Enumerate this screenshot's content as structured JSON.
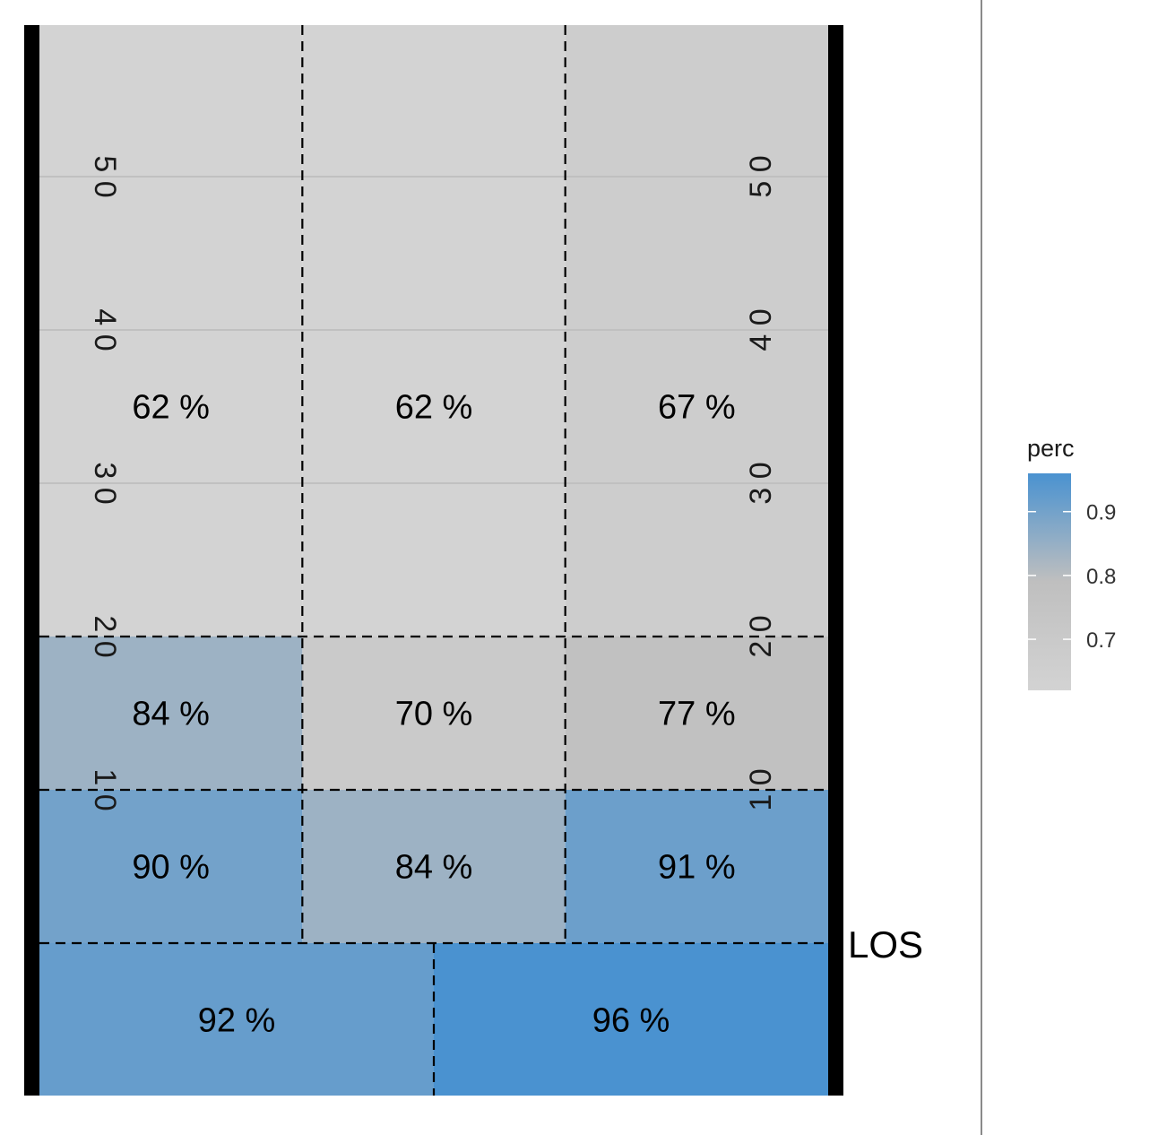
{
  "chart_data": {
    "type": "heatmap",
    "description_type": "football field completion-percentage heatmap",
    "y_range": [
      -10,
      50
    ],
    "yard_markers": [
      "1 0",
      "2 0",
      "3 0",
      "4 0",
      "5 0"
    ],
    "line_of_scrimmage_label": "LOS",
    "zones": [
      {
        "id": "deep-left",
        "y_range": [
          20,
          60
        ],
        "x_range": [
          0,
          1
        ],
        "value": 0.62,
        "label": "62 %"
      },
      {
        "id": "deep-middle",
        "y_range": [
          20,
          60
        ],
        "x_range": [
          1,
          2
        ],
        "value": 0.62,
        "label": "62 %"
      },
      {
        "id": "deep-right",
        "y_range": [
          20,
          60
        ],
        "x_range": [
          2,
          3
        ],
        "value": 0.67,
        "label": "67 %"
      },
      {
        "id": "intermediate-left",
        "y_range": [
          10,
          20
        ],
        "x_range": [
          0,
          1
        ],
        "value": 0.84,
        "label": "84 %"
      },
      {
        "id": "intermediate-middle",
        "y_range": [
          10,
          20
        ],
        "x_range": [
          1,
          2
        ],
        "value": 0.7,
        "label": "70 %"
      },
      {
        "id": "intermediate-right",
        "y_range": [
          10,
          20
        ],
        "x_range": [
          2,
          3
        ],
        "value": 0.77,
        "label": "77 %"
      },
      {
        "id": "short-left",
        "y_range": [
          0,
          10
        ],
        "x_range": [
          0,
          1
        ],
        "value": 0.9,
        "label": "90 %"
      },
      {
        "id": "short-middle",
        "y_range": [
          0,
          10
        ],
        "x_range": [
          1,
          2
        ],
        "value": 0.84,
        "label": "84 %"
      },
      {
        "id": "short-right",
        "y_range": [
          0,
          10
        ],
        "x_range": [
          2,
          3
        ],
        "value": 0.91,
        "label": "91 %"
      },
      {
        "id": "behind-left",
        "y_range": [
          -10,
          0
        ],
        "x_range": [
          0,
          1.5
        ],
        "value": 0.92,
        "label": "92 %"
      },
      {
        "id": "behind-right",
        "y_range": [
          -10,
          0
        ],
        "x_range": [
          1.5,
          3
        ],
        "value": 0.96,
        "label": "96 %"
      }
    ],
    "legend": {
      "title": "perc",
      "placement": "right",
      "ticks": [
        0.7,
        0.8,
        0.9
      ],
      "tick_labels": [
        "0.7",
        "0.8",
        "0.9"
      ],
      "range": [
        0.62,
        0.96
      ],
      "low_color": "#d3d3d3",
      "mid_color": "#bfbfbf",
      "high_color": "#4a92d0"
    },
    "colors": {
      "sideline": "#000000",
      "yard_line": "#c0c0c0",
      "zone_border": "#000000",
      "panel_divider": "#8a8a8a"
    }
  }
}
